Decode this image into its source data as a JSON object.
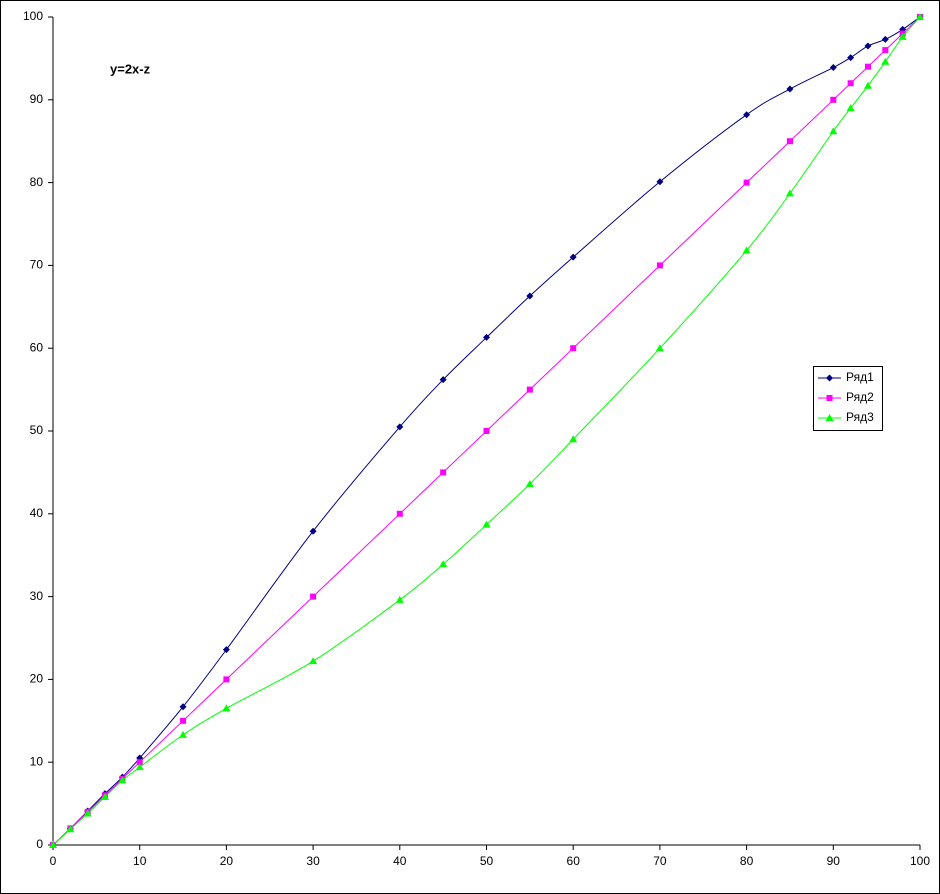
{
  "chart_data": {
    "type": "scatter",
    "annotation": "y=2x-z",
    "x": [
      0,
      2,
      4,
      6,
      8,
      10,
      15,
      20,
      30,
      40,
      45,
      50,
      55,
      60,
      70,
      80,
      85,
      90,
      92,
      94,
      96,
      98,
      100
    ],
    "series": [
      {
        "name": "Ряд1",
        "color": "#000080",
        "marker": "diamond",
        "values": [
          0,
          2,
          4.1,
          6.2,
          8.2,
          10.5,
          16.7,
          23.6,
          37.9,
          50.5,
          56.2,
          61.3,
          66.3,
          71,
          80.1,
          88.2,
          91.3,
          93.9,
          95.1,
          96.5,
          97.3,
          98.5,
          100
        ]
      },
      {
        "name": "Ряд2",
        "color": "#ff00ff",
        "marker": "square",
        "values": [
          0,
          2,
          4,
          6,
          8,
          10,
          15,
          20,
          30,
          40,
          45,
          50,
          55,
          60,
          70,
          80,
          85,
          90,
          92,
          94,
          96,
          98,
          100
        ]
      },
      {
        "name": "Ряд3",
        "color": "#00ff00",
        "marker": "triangle",
        "values": [
          0,
          1.9,
          3.8,
          5.8,
          7.8,
          9.4,
          13.3,
          16.5,
          22.2,
          29.6,
          33.9,
          38.7,
          43.6,
          49,
          60,
          71.8,
          78.7,
          86.2,
          89,
          91.7,
          94.6,
          97.6,
          100
        ]
      }
    ],
    "xlim": [
      0,
      100
    ],
    "ylim": [
      0,
      100
    ],
    "xticks": [
      0,
      10,
      20,
      30,
      40,
      50,
      60,
      70,
      80,
      90,
      100
    ],
    "yticks": [
      0,
      10,
      20,
      30,
      40,
      50,
      60,
      70,
      80,
      90,
      100
    ],
    "smooth": true,
    "grid": false,
    "legend": "right"
  }
}
